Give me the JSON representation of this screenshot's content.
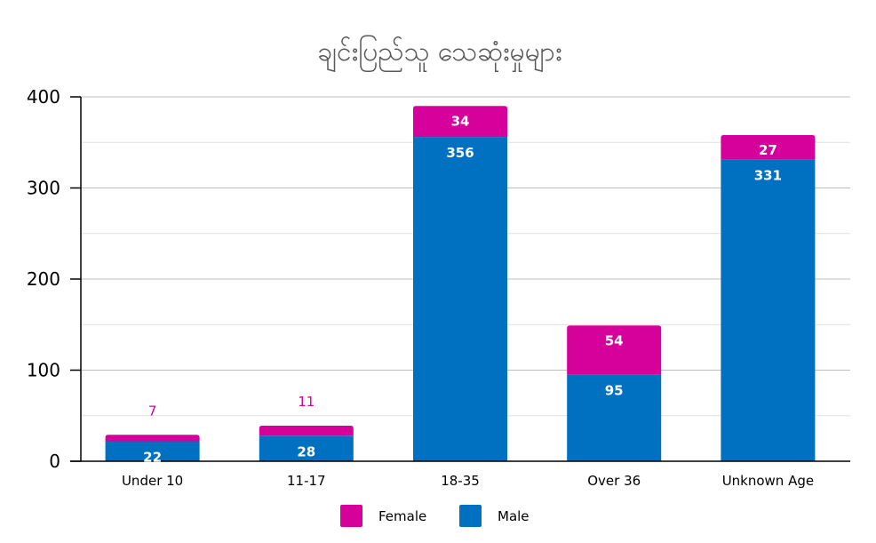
{
  "chart_data": {
    "type": "bar",
    "stacked": true,
    "title": "ချင်းပြည်သူ သေဆုံးမှုများ",
    "categories": [
      "Under 10",
      "11-17",
      "18-35",
      "Over 36",
      "Unknown Age"
    ],
    "series": [
      {
        "name": "Male",
        "color": "#0070C0",
        "values": [
          22,
          28,
          356,
          95,
          331
        ]
      },
      {
        "name": "Female",
        "color": "#D6009A",
        "values": [
          7,
          11,
          34,
          54,
          27
        ]
      }
    ],
    "yticks": [
      0,
      100,
      200,
      300,
      400
    ],
    "ylim": [
      0,
      400
    ],
    "grid": true,
    "legend": "bottom",
    "legend_order": [
      "Female",
      "Male"
    ]
  }
}
